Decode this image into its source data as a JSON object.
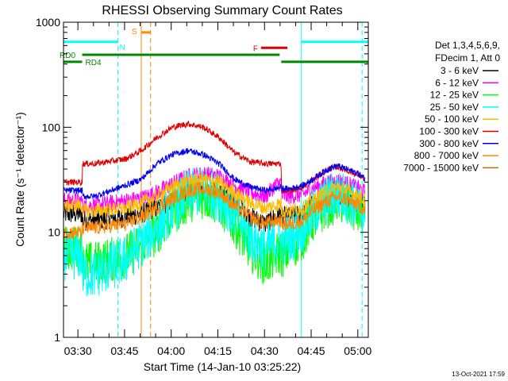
{
  "chart_data": {
    "type": "line",
    "title": "RHESSI Observing Summary Count Rates",
    "xlabel": "Start Time (14-Jan-10 03:25:22)",
    "ylabel": "Count Rate (s⁻¹ detector⁻¹)",
    "y_scale": "log",
    "ylim": [
      1,
      1000
    ],
    "xlim_minutes": [
      0,
      98
    ],
    "x_ticks": [
      {
        "label": "03:30",
        "minute": 4.63
      },
      {
        "label": "03:45",
        "minute": 19.63
      },
      {
        "label": "04:00",
        "minute": 34.63
      },
      {
        "label": "04:15",
        "minute": 49.63
      },
      {
        "label": "04:30",
        "minute": 64.63
      },
      {
        "label": "04:45",
        "minute": 79.63
      },
      {
        "label": "05:00",
        "minute": 94.63
      }
    ],
    "y_ticks": [
      {
        "label": "1",
        "value": 1
      },
      {
        "label": "10",
        "value": 10
      },
      {
        "label": "100",
        "value": 100
      },
      {
        "label": "1000",
        "value": 1000
      }
    ],
    "legend_header": [
      "Det 1,3,4,5,6,9,",
      "FDecim 1, Att 0"
    ],
    "series": [
      {
        "name": "3 - 6 keV",
        "color": "#000000",
        "x": [
          0,
          6,
          6.1,
          10,
          20,
          25,
          30,
          35,
          40,
          45,
          50,
          55,
          60,
          65,
          68,
          70,
          70.1,
          73,
          77,
          80,
          85,
          88,
          90,
          95,
          97
        ],
        "values": [
          15,
          15,
          13,
          13,
          14,
          15,
          17,
          20,
          24,
          26,
          24,
          19,
          14,
          12,
          14,
          15,
          14,
          14,
          15,
          18,
          22,
          23,
          22,
          19,
          18
        ]
      },
      {
        "name": "6 - 12 keV",
        "color": "#ff00ff",
        "x": [
          0,
          6,
          6.1,
          10,
          20,
          25,
          30,
          35,
          40,
          45,
          50,
          55,
          60,
          65,
          68,
          70,
          70.1,
          73,
          77,
          80,
          85,
          88,
          90,
          95,
          97
        ],
        "values": [
          20,
          20,
          18,
          18,
          20,
          21,
          24,
          29,
          34,
          36,
          34,
          28,
          24,
          22,
          28,
          30,
          22,
          22,
          23,
          26,
          30,
          31,
          30,
          26,
          24
        ]
      },
      {
        "name": "12 - 25 keV",
        "color": "#00ff00",
        "x": [
          0,
          6,
          6.1,
          10,
          20,
          25,
          30,
          35,
          40,
          45,
          50,
          55,
          60,
          65,
          68,
          70,
          70.1,
          73,
          77,
          80,
          85,
          88,
          90,
          95,
          97
        ],
        "values": [
          7,
          7,
          5,
          5,
          6,
          7.5,
          10,
          15,
          20,
          22,
          19,
          12,
          7,
          5,
          6,
          6.5,
          6,
          7,
          9,
          13,
          18,
          20,
          19,
          15,
          13
        ]
      },
      {
        "name": "25 - 50 keV",
        "color": "#00ffff",
        "x": [
          0,
          6,
          6.1,
          10,
          20,
          25,
          30,
          35,
          40,
          45,
          50,
          55,
          60,
          65,
          68,
          70,
          70.1,
          73,
          77,
          80,
          85,
          88,
          90,
          95,
          97
        ],
        "values": [
          6,
          6,
          4,
          4,
          5.5,
          8,
          11,
          17,
          23,
          25,
          22,
          15,
          9,
          7,
          8,
          8.5,
          8,
          9,
          11,
          15,
          21,
          23,
          22,
          17,
          14
        ]
      },
      {
        "name": "50 - 100 keV",
        "color": "#ffbb00",
        "x": [
          0,
          6,
          6.1,
          10,
          20,
          25,
          30,
          35,
          40,
          45,
          50,
          55,
          60,
          65,
          68,
          70,
          70.1,
          73,
          77,
          80,
          85,
          88,
          90,
          95,
          97
        ],
        "values": [
          18,
          18,
          16,
          16,
          17,
          19,
          22,
          27,
          31,
          32,
          30,
          24,
          19,
          17,
          18,
          19,
          16,
          16,
          17,
          20,
          25,
          27,
          26,
          22,
          20
        ]
      },
      {
        "name": "100 - 300 keV",
        "color": "#dd0000",
        "x": [
          0,
          6,
          6.1,
          10,
          20,
          25,
          30,
          35,
          40,
          45,
          50,
          55,
          60,
          65,
          68,
          70,
          70.1,
          73,
          77,
          80,
          85,
          88,
          90,
          95,
          97
        ],
        "values": [
          30,
          30,
          45,
          45,
          50,
          60,
          80,
          100,
          108,
          100,
          80,
          57,
          47,
          45,
          45,
          45,
          25,
          25,
          27,
          31,
          40,
          42,
          40,
          35,
          32
        ]
      },
      {
        "name": "300 - 800 keV",
        "color": "#0000ee",
        "x": [
          0,
          6,
          6.1,
          10,
          20,
          25,
          30,
          35,
          40,
          45,
          50,
          55,
          60,
          65,
          68,
          70,
          70.1,
          73,
          77,
          80,
          85,
          88,
          90,
          95,
          97
        ],
        "values": [
          25,
          25,
          22,
          22,
          28,
          32,
          45,
          55,
          60,
          55,
          45,
          32,
          27,
          25,
          26,
          27,
          26,
          26,
          28,
          32,
          40,
          43,
          41,
          36,
          32
        ]
      },
      {
        "name": "800 - 7000 keV",
        "color": "#ff8800",
        "x": [
          0,
          6,
          6.1,
          10,
          20,
          25,
          30,
          35,
          40,
          45,
          50,
          55,
          60,
          65,
          68,
          70,
          70.1,
          73,
          77,
          80,
          85,
          88,
          90,
          95,
          97
        ],
        "values": [
          10,
          10,
          11,
          11,
          12,
          14,
          17,
          21,
          25,
          26,
          24,
          18,
          14,
          12,
          13,
          13,
          12,
          12,
          13,
          16,
          20,
          22,
          21,
          18,
          16
        ]
      },
      {
        "name": "7000 - 15000 keV",
        "color": "#a87800",
        "x": [],
        "values": []
      }
    ],
    "flags": [
      {
        "label": "N",
        "color": "#00ffff",
        "segments": [
          [
            0,
            17.5
          ],
          [
            76.5,
            98
          ]
        ],
        "level": 650
      },
      {
        "label": "S",
        "color": "#ff8800",
        "segments": [
          [
            25,
            28
          ]
        ],
        "level": 800
      },
      {
        "label": "F",
        "color": "#dd0000",
        "segments": [
          [
            63.5,
            72
          ]
        ],
        "level": 570
      },
      {
        "label": "RD0",
        "color": "#008800",
        "segments": [
          [
            6,
            69.5
          ]
        ],
        "level": 490
      },
      {
        "label": "RD4",
        "color": "#008800",
        "segments": [
          [
            0,
            6
          ],
          [
            70,
            98
          ]
        ],
        "level": 420
      }
    ],
    "vertical_lines": [
      {
        "minute": 17.5,
        "color": "#00ffff",
        "style": "dashed"
      },
      {
        "minute": 25,
        "color": "#ff8800",
        "style": "solid"
      },
      {
        "minute": 28,
        "color": "#ff8800",
        "style": "dashed"
      },
      {
        "minute": 76.5,
        "color": "#00ffff",
        "style": "solid"
      },
      {
        "minute": 96,
        "color": "#00ffff",
        "style": "dashed"
      }
    ]
  },
  "footer": {
    "timestamp": "13-Oct-2021 17:59"
  }
}
